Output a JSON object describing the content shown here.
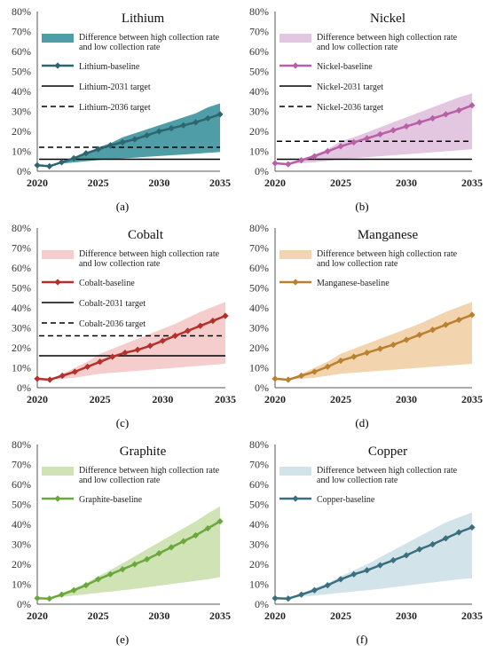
{
  "panels": [
    {
      "caption": "(a)"
    },
    {
      "caption": "(b)"
    },
    {
      "caption": "(c)"
    },
    {
      "caption": "(d)"
    },
    {
      "caption": "(e)"
    },
    {
      "caption": "(f)"
    }
  ],
  "chart_data": [
    {
      "type": "line",
      "title": "Lithium",
      "x": [
        2020,
        2021,
        2022,
        2023,
        2024,
        2025,
        2026,
        2027,
        2028,
        2029,
        2030,
        2031,
        2032,
        2033,
        2034,
        2035
      ],
      "xticks": [
        2020,
        2025,
        2030,
        2035
      ],
      "ylim": [
        0,
        80
      ],
      "yticks": [
        0,
        10,
        20,
        30,
        40,
        50,
        60,
        70,
        80
      ],
      "y_unit": "%",
      "series": [
        {
          "name": "Difference between high collection rate and low collection rate",
          "kind": "band",
          "color": "#4f9da6",
          "low": [
            3,
            3,
            3.8,
            4.4,
            5,
            5.6,
            6,
            6.4,
            6.8,
            7.2,
            7.6,
            8,
            8.4,
            8.8,
            9.2,
            9.6
          ],
          "high": [
            3,
            3,
            5,
            7,
            9,
            12,
            14,
            17,
            19,
            21,
            23,
            25,
            27,
            29,
            32,
            34
          ]
        },
        {
          "name": "Lithium-baseline",
          "kind": "line",
          "color": "#2e6670",
          "values": [
            3,
            2.5,
            4.5,
            6.5,
            9,
            11,
            13,
            14.5,
            16,
            18,
            20,
            21.5,
            23,
            24.5,
            26.5,
            28.5
          ]
        },
        {
          "name": "Lithium-2031 target",
          "kind": "hline",
          "value": 6,
          "style": "solid"
        },
        {
          "name": "Lithium-2036 target",
          "kind": "hline",
          "value": 12,
          "style": "dashed"
        }
      ]
    },
    {
      "type": "line",
      "title": "Nickel",
      "x": [
        2020,
        2021,
        2022,
        2023,
        2024,
        2025,
        2026,
        2027,
        2028,
        2029,
        2030,
        2031,
        2032,
        2033,
        2034,
        2035
      ],
      "xticks": [
        2020,
        2025,
        2030,
        2035
      ],
      "ylim": [
        0,
        80
      ],
      "yticks": [
        0,
        10,
        20,
        30,
        40,
        50,
        60,
        70,
        80
      ],
      "y_unit": "%",
      "series": [
        {
          "name": "Difference between high collection rate and low collection rate",
          "kind": "band",
          "color": "#e3c6df",
          "low": [
            4,
            3.5,
            4,
            4.5,
            5.2,
            6,
            6.5,
            7,
            7.5,
            8,
            8.5,
            9,
            9.5,
            10,
            10.5,
            11
          ],
          "high": [
            4,
            3.5,
            6,
            8.5,
            11,
            15,
            17,
            19.5,
            22,
            24.5,
            27,
            29.5,
            32,
            34.5,
            37,
            39
          ]
        },
        {
          "name": "Nickel-baseline",
          "kind": "line",
          "color": "#b85fa8",
          "values": [
            4,
            3.5,
            5.5,
            7.5,
            10,
            12.5,
            14.5,
            16.5,
            18.5,
            20.5,
            22.5,
            24.5,
            26.5,
            28.5,
            30.5,
            33
          ]
        },
        {
          "name": "Nickel-2031 target",
          "kind": "hline",
          "value": 6,
          "style": "solid"
        },
        {
          "name": "Nickel-2036 target",
          "kind": "hline",
          "value": 15,
          "style": "dashed"
        }
      ]
    },
    {
      "type": "line",
      "title": "Cobalt",
      "x": [
        2020,
        2021,
        2022,
        2023,
        2024,
        2025,
        2026,
        2027,
        2028,
        2029,
        2030,
        2031,
        2032,
        2033,
        2034,
        2035
      ],
      "xticks": [
        2020,
        2025,
        2030,
        2035
      ],
      "ylim": [
        0,
        80
      ],
      "yticks": [
        0,
        10,
        20,
        30,
        40,
        50,
        60,
        70,
        80
      ],
      "y_unit": "%",
      "series": [
        {
          "name": "Difference between high collection rate and low collection rate",
          "kind": "band",
          "color": "#f6cdcd",
          "low": [
            5,
            4,
            4.5,
            5,
            6,
            7,
            7.5,
            8,
            8.5,
            9,
            9.5,
            10,
            10.5,
            11,
            11.5,
            12
          ],
          "high": [
            5,
            4,
            7,
            10,
            13,
            17,
            19.5,
            22,
            24.5,
            27,
            29.5,
            32,
            35,
            38,
            40.5,
            43
          ]
        },
        {
          "name": "Cobalt-baseline",
          "kind": "line",
          "color": "#b4302b",
          "values": [
            4.5,
            4,
            6,
            8,
            10.5,
            13,
            15.5,
            17.5,
            19,
            21,
            23.5,
            26,
            28.5,
            31,
            33.5,
            36
          ]
        },
        {
          "name": "Cobalt-2031 target",
          "kind": "hline",
          "value": 16,
          "style": "solid"
        },
        {
          "name": "Cobalt-2036 target",
          "kind": "hline",
          "value": 26,
          "style": "dashed"
        }
      ]
    },
    {
      "type": "line",
      "title": "Manganese",
      "x": [
        2020,
        2021,
        2022,
        2023,
        2024,
        2025,
        2026,
        2027,
        2028,
        2029,
        2030,
        2031,
        2032,
        2033,
        2034,
        2035
      ],
      "xticks": [
        2020,
        2025,
        2030,
        2035
      ],
      "ylim": [
        0,
        80
      ],
      "yticks": [
        0,
        10,
        20,
        30,
        40,
        50,
        60,
        70,
        80
      ],
      "y_unit": "%",
      "series": [
        {
          "name": "Difference between high collection rate and low collection rate",
          "kind": "band",
          "color": "#f2d4ae",
          "low": [
            5,
            4,
            4.5,
            5,
            6,
            7,
            7.5,
            8,
            8.5,
            9,
            9.5,
            10,
            10.5,
            11,
            11.5,
            12
          ],
          "high": [
            5,
            4,
            7,
            10,
            13,
            17,
            19.5,
            22,
            24.5,
            27,
            29.5,
            32,
            35,
            38,
            40.5,
            43
          ]
        },
        {
          "name": "Manganese-baseline",
          "kind": "line",
          "color": "#b9802f",
          "values": [
            4.5,
            4,
            6,
            8,
            10.5,
            13.5,
            15.5,
            17.5,
            19.5,
            21.5,
            24,
            26.5,
            29,
            31.5,
            34,
            36.5
          ]
        }
      ]
    },
    {
      "type": "line",
      "title": "Graphite",
      "x": [
        2020,
        2021,
        2022,
        2023,
        2024,
        2025,
        2026,
        2027,
        2028,
        2029,
        2030,
        2031,
        2032,
        2033,
        2034,
        2035
      ],
      "xticks": [
        2020,
        2025,
        2030,
        2035
      ],
      "ylim": [
        0,
        80
      ],
      "yticks": [
        0,
        10,
        20,
        30,
        40,
        50,
        60,
        70,
        80
      ],
      "y_unit": "%",
      "series": [
        {
          "name": "Difference between high collection rate and low collection rate",
          "kind": "band",
          "color": "#cfe3b4",
          "low": [
            3,
            3,
            3.7,
            4.3,
            5,
            5.7,
            6.3,
            7,
            7.7,
            8.5,
            9.3,
            10.1,
            10.9,
            11.7,
            12.5,
            13.5
          ],
          "high": [
            3,
            3,
            5.5,
            8,
            10.5,
            14,
            17,
            20.5,
            24,
            27.5,
            31,
            34.5,
            38,
            41.5,
            45.5,
            49
          ]
        },
        {
          "name": "Graphite-baseline",
          "kind": "line",
          "color": "#6aa83e",
          "values": [
            3,
            2.8,
            4.8,
            7,
            9.5,
            12.5,
            15,
            17.5,
            20,
            22.5,
            25.5,
            28.5,
            31.5,
            34.5,
            38,
            41.5
          ]
        }
      ]
    },
    {
      "type": "line",
      "title": "Copper",
      "x": [
        2020,
        2021,
        2022,
        2023,
        2024,
        2025,
        2026,
        2027,
        2028,
        2029,
        2030,
        2031,
        2032,
        2033,
        2034,
        2035
      ],
      "xticks": [
        2020,
        2025,
        2030,
        2035
      ],
      "ylim": [
        0,
        80
      ],
      "yticks": [
        0,
        10,
        20,
        30,
        40,
        50,
        60,
        70,
        80
      ],
      "y_unit": "%",
      "series": [
        {
          "name": "Difference between high collection rate and low collection rate",
          "kind": "band",
          "color": "#d2e4ea",
          "low": [
            3,
            3,
            3.7,
            4.3,
            5,
            5.7,
            6.3,
            7,
            7.7,
            8.5,
            9.3,
            10.1,
            10.9,
            11.7,
            12.5,
            13
          ],
          "high": [
            3,
            3,
            5.5,
            8,
            10.5,
            14,
            17,
            20,
            23.5,
            27,
            30.5,
            34,
            37.5,
            41,
            43.5,
            46
          ]
        },
        {
          "name": "Copper-baseline",
          "kind": "line",
          "color": "#3a6f7f",
          "values": [
            3,
            2.8,
            4.8,
            7,
            9.5,
            12.5,
            15,
            17,
            19.5,
            22,
            24.5,
            27.5,
            30,
            33,
            36,
            38.5
          ]
        }
      ]
    }
  ]
}
